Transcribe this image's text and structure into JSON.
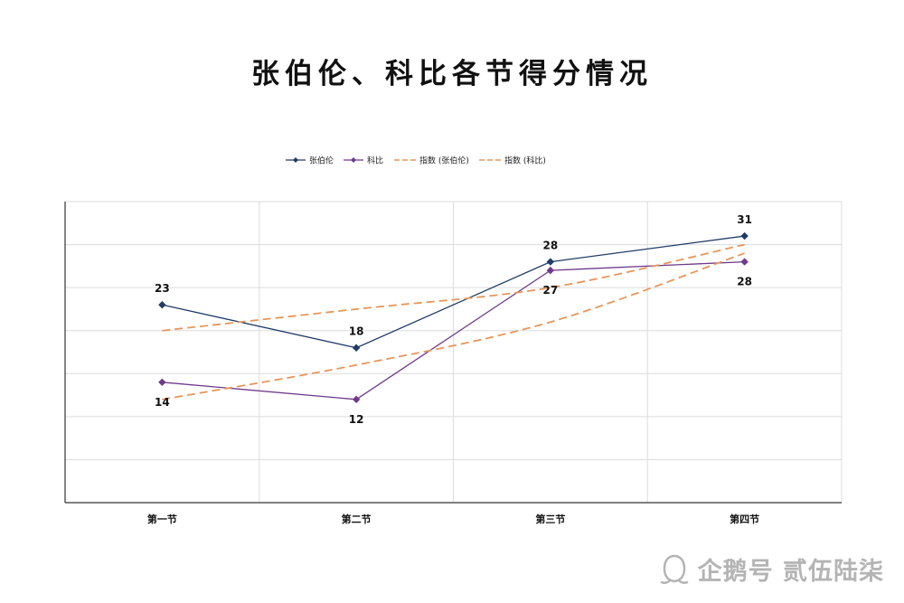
{
  "chart_data": {
    "type": "line",
    "title": "张伯伦、科比各节得分情况",
    "categories": [
      "第一节",
      "第二节",
      "第三节",
      "第四节"
    ],
    "ylim": [
      0,
      35
    ],
    "grid": true,
    "legend_placement": "top-center",
    "series": [
      {
        "name": "张伯伦",
        "values": [
          23,
          18,
          28,
          31
        ],
        "labels": [
          "23",
          "18",
          "28",
          "31"
        ],
        "color": "#1f3c66",
        "marker": "diamond",
        "style": "solid"
      },
      {
        "name": "科比",
        "values": [
          14,
          12,
          27,
          28
        ],
        "labels": [
          "14",
          "12",
          "27",
          "28"
        ],
        "color": "#6e3a8a",
        "marker": "diamond",
        "style": "solid"
      },
      {
        "name": "指数 (张伯伦)",
        "values": [
          20,
          22.5,
          25,
          30
        ],
        "color": "#e8965a",
        "style": "dashed"
      },
      {
        "name": "指数 (科比)",
        "values": [
          12,
          16,
          21,
          29
        ],
        "color": "#e8965a",
        "style": "dashed"
      }
    ]
  },
  "watermark": {
    "text": "企鹅号 贰伍陆柒",
    "logo_icon": "penguin-logo-icon"
  }
}
